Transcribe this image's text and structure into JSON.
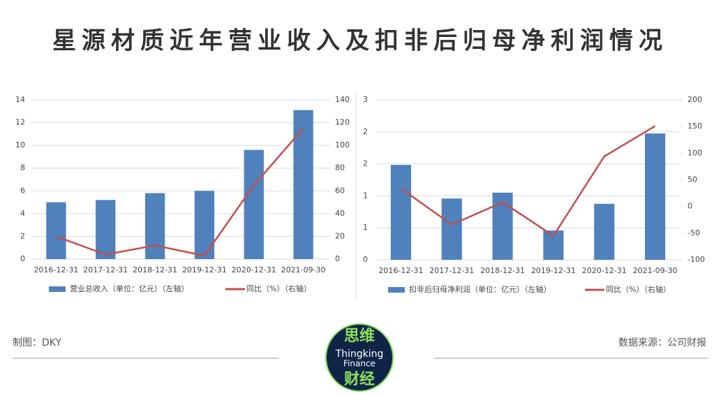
{
  "header": {
    "title": "星源材质近年营业收入及扣非后归母净利润情况"
  },
  "chart_data": [
    {
      "type": "bar",
      "categories": [
        "2016-12-31",
        "2017-12-31",
        "2018-12-31",
        "2019-12-31",
        "2020-12-31",
        "2021-09-30"
      ],
      "series": [
        {
          "name": "营业总收入（单位：亿元）（左轴）",
          "type": "bar",
          "color": "#4f81bd",
          "values": [
            5.0,
            5.2,
            5.8,
            6.0,
            9.6,
            13.1
          ]
        },
        {
          "name": "同比（%）（右轴）",
          "type": "line",
          "axis": "y2",
          "color": "#c0504d",
          "values": [
            20,
            4,
            12,
            3,
            65,
            115
          ]
        }
      ],
      "ylim": [
        0,
        14
      ],
      "yticks": [
        0,
        2,
        4,
        6,
        8,
        10,
        12,
        14
      ],
      "y2lim": [
        0,
        140
      ],
      "y2ticks": [
        0,
        20,
        40,
        60,
        80,
        100,
        120,
        140
      ],
      "grid": true
    },
    {
      "type": "bar",
      "categories": [
        "2016-12-31",
        "2017-12-31",
        "2018-12-31",
        "2019-12-31",
        "2020-12-31",
        "2021-09-30"
      ],
      "series": [
        {
          "name": "扣非后归母净利润（单位：亿元）（左轴）",
          "type": "bar",
          "color": "#4f81bd",
          "values": [
            1.78,
            1.15,
            1.26,
            0.55,
            1.05,
            2.37
          ]
        },
        {
          "name": "同比（%）（右轴）",
          "type": "line",
          "axis": "y2",
          "color": "#c0504d",
          "values": [
            34,
            -34,
            8,
            -55,
            94,
            151
          ]
        }
      ],
      "ylim": [
        0,
        3
      ],
      "yticks": [
        0,
        {
          "value": 0.6,
          "label": "1"
        },
        {
          "value": 1.2,
          "label": "1"
        },
        {
          "value": 1.8,
          "label": "2"
        },
        {
          "value": 2.4,
          "label": "2"
        },
        {
          "value": 3,
          "label": "3"
        }
      ],
      "y2lim": [
        -100,
        200
      ],
      "y2ticks": [
        -100,
        -50,
        0,
        50,
        100,
        150,
        200
      ],
      "grid": true
    }
  ],
  "footer": {
    "credit": "制图：DKY",
    "source": "数据来源：公司财报"
  },
  "logo": {
    "top": "思维",
    "line1": "Thingking",
    "line2": "Finance",
    "bottom": "财经"
  }
}
